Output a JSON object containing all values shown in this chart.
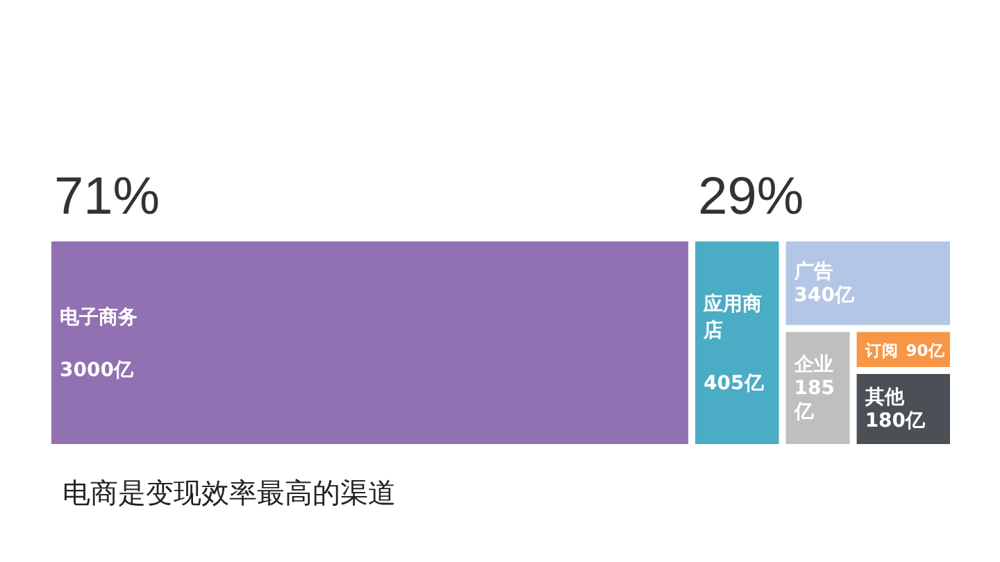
{
  "chart_data": {
    "type": "other",
    "categories": [
      "电子商务",
      "应用商店",
      "广告",
      "企业",
      "订阅",
      "其他"
    ],
    "values": [
      3000,
      405,
      340,
      185,
      90,
      180
    ],
    "value_labels": [
      "3000亿",
      "405亿",
      "340亿",
      "185亿",
      "90亿",
      "180亿"
    ],
    "colors": [
      "#9171b1",
      "#4aacc5",
      "#b3c6e5",
      "#bfbfbf",
      "#f79646",
      "#4b5056"
    ],
    "annotations": [
      "71%",
      "29%",
      "电商是变现效率最高的渠道"
    ]
  }
}
